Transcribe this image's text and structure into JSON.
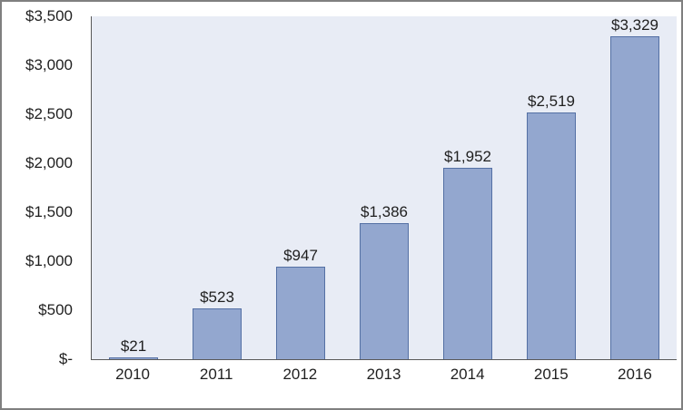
{
  "chart_data": {
    "type": "bar",
    "title": "",
    "xlabel": "",
    "ylabel": "",
    "categories": [
      "2010",
      "2011",
      "2012",
      "2013",
      "2014",
      "2015",
      "2016"
    ],
    "values": [
      21,
      523,
      947,
      1386,
      1952,
      2519,
      3329
    ],
    "data_labels": [
      "$21",
      "$523",
      "$947",
      "$1,386",
      "$1,952",
      "$2,519",
      "$3,329"
    ],
    "ylim": [
      0,
      3500
    ],
    "ytick_step": 500,
    "ytick_labels": [
      "$-",
      "$500",
      "$1,000",
      "$1,500",
      "$2,000",
      "$2,500",
      "$3,000",
      "$3,500"
    ],
    "grid": false,
    "legend": false,
    "colors": {
      "bar_fill": "#93a7cf",
      "bar_border": "#5470a4",
      "plot_background": "#e8ecf5",
      "axis_line": "#595959",
      "text": "#1f1f1f",
      "chart_background": "#ffffff",
      "outer_border": "#7f7f7f"
    }
  }
}
